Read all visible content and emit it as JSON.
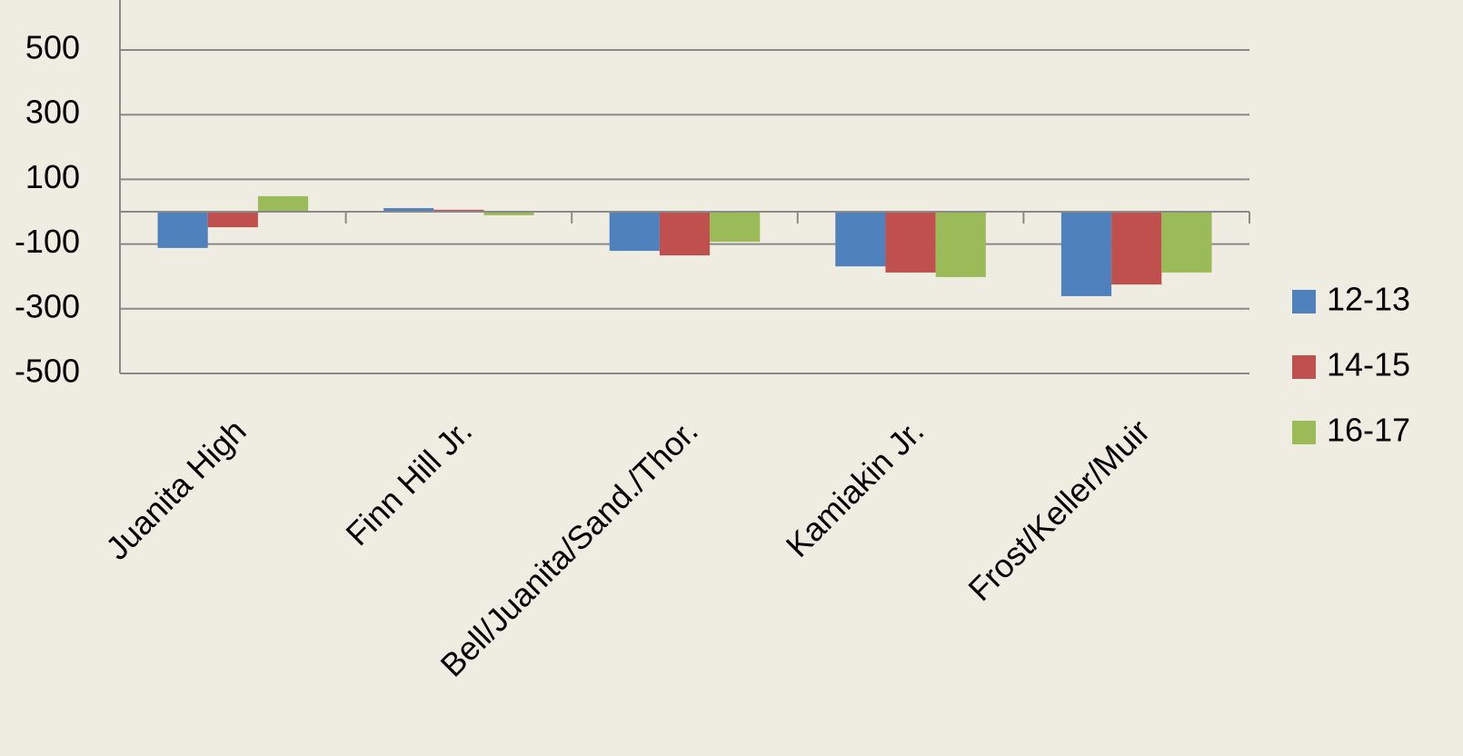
{
  "chart_data": {
    "type": "bar",
    "categories": [
      "Juanita High",
      "Finn Hill Jr.",
      "Bell/Juanita/Sand./Thor.",
      "Kamiakin Jr.",
      "Frost/Keller/Muir"
    ],
    "series": [
      {
        "name": "12-13",
        "color": "#4f81bd",
        "values": [
          -112,
          11,
          -121,
          -169,
          -261
        ]
      },
      {
        "name": "14-15",
        "color": "#c0504d",
        "values": [
          -48,
          6,
          -135,
          -188,
          -225
        ]
      },
      {
        "name": "16-17",
        "color": "#9bbb59",
        "values": [
          48,
          -11,
          -93,
          -202,
          -188
        ]
      }
    ],
    "ylim": [
      -500,
      500
    ],
    "yticks": [
      -500,
      -300,
      -100,
      100,
      300,
      500
    ],
    "grid": true,
    "legend": "right"
  }
}
